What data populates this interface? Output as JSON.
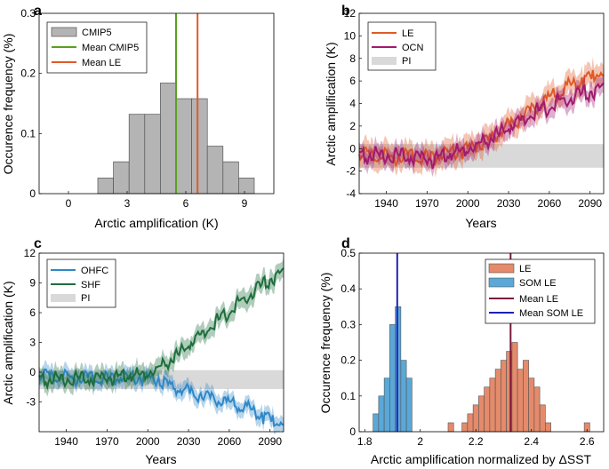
{
  "chart_data": [
    {
      "panel": "a",
      "type": "bar",
      "xlabel": "Arctic amplification (K)",
      "ylabel": "Occurence frequency (%)",
      "xlim": [
        -1.5,
        10.5
      ],
      "ylim": [
        0,
        0.3
      ],
      "xticks": [
        "0",
        "3",
        "6",
        "9"
      ],
      "yticks": [
        "0",
        "0.1",
        "0.2",
        "0.3"
      ],
      "legend": [
        "CMIP5",
        "Mean CMIP5",
        "Mean LE"
      ],
      "bins": [
        {
          "x0": 1.5,
          "x1": 2.3,
          "v": 0.026
        },
        {
          "x0": 2.3,
          "x1": 3.1,
          "v": 0.053
        },
        {
          "x0": 3.1,
          "x1": 3.9,
          "v": 0.132
        },
        {
          "x0": 3.9,
          "x1": 4.7,
          "v": 0.132
        },
        {
          "x0": 4.7,
          "x1": 5.5,
          "v": 0.184
        },
        {
          "x0": 5.5,
          "x1": 6.3,
          "v": 0.158
        },
        {
          "x0": 6.3,
          "x1": 7.1,
          "v": 0.158
        },
        {
          "x0": 7.1,
          "x1": 7.9,
          "v": 0.079
        },
        {
          "x0": 7.9,
          "x1": 8.7,
          "v": 0.053
        },
        {
          "x0": 8.7,
          "x1": 9.5,
          "v": 0.026
        }
      ],
      "vlines": [
        {
          "name": "Mean CMIP5",
          "x": 5.5,
          "color": "#5aa01e"
        },
        {
          "name": "Mean LE",
          "x": 6.6,
          "color": "#e05a26"
        }
      ],
      "colors": {
        "bars": "#b4b4b4",
        "bar_edge": "#555555"
      }
    },
    {
      "panel": "b",
      "type": "line",
      "xlabel": "Years",
      "ylabel": "Arctic amplification (K)",
      "xlim": [
        1920,
        2100
      ],
      "ylim": [
        -4,
        12
      ],
      "xticks": [
        "1940",
        "1970",
        "2000",
        "2030",
        "2060",
        "2090"
      ],
      "yticks": [
        "-4",
        "-2",
        "0",
        "2",
        "4",
        "6",
        "8",
        "10",
        "12"
      ],
      "legend": [
        "LE",
        "OCN",
        "PI"
      ],
      "pi_band": [
        -1.7,
        0.4
      ],
      "series": [
        {
          "name": "LE",
          "color": "#e05a26",
          "band": 1.0,
          "x": [
            1920,
            1940,
            1960,
            1975,
            1990,
            2000,
            2010,
            2020,
            2030,
            2040,
            2050,
            2060,
            2070,
            2080,
            2090,
            2100
          ],
          "y": [
            0,
            -0.2,
            -0.3,
            -0.4,
            0.1,
            0.5,
            1.0,
            1.7,
            2.5,
            3.3,
            4.1,
            4.9,
            5.6,
            6.3,
            6.8,
            7.3
          ]
        },
        {
          "name": "OCN",
          "color": "#a11a6e",
          "band": 0.8,
          "x": [
            1920,
            1940,
            1960,
            1975,
            1990,
            2000,
            2010,
            2020,
            2030,
            2040,
            2050,
            2060,
            2070,
            2080,
            2090,
            2100
          ],
          "y": [
            -0.1,
            -0.2,
            -0.3,
            -0.5,
            0.1,
            0.4,
            0.9,
            1.6,
            2.3,
            3.0,
            3.6,
            4.2,
            4.7,
            5.1,
            5.5,
            5.8
          ]
        }
      ]
    },
    {
      "panel": "c",
      "type": "line",
      "xlabel": "Years",
      "ylabel": "Arctic amplification (K)",
      "xlim": [
        1920,
        2100
      ],
      "ylim": [
        -6,
        12
      ],
      "xticks": [
        "1940",
        "1970",
        "2000",
        "2030",
        "2060",
        "2090"
      ],
      "yticks": [
        "-3",
        "0",
        "3",
        "6",
        "9",
        "12"
      ],
      "legend": [
        "OHFC",
        "SHF",
        "PI"
      ],
      "pi_band": [
        -1.7,
        0.2
      ],
      "series": [
        {
          "name": "OHFC",
          "color": "#2f88c8",
          "band": 0.8,
          "x": [
            1920,
            1940,
            1960,
            1980,
            2000,
            2010,
            2020,
            2030,
            2040,
            2050,
            2060,
            2070,
            2080,
            2090,
            2095,
            2100
          ],
          "y": [
            0.2,
            0.0,
            -0.2,
            -0.2,
            -0.1,
            -0.4,
            -1.0,
            -1.5,
            -1.9,
            -2.3,
            -2.7,
            -3.1,
            -3.6,
            -4.2,
            -4.7,
            -4.5
          ]
        },
        {
          "name": "SHF",
          "color": "#1e6e3c",
          "band": 0.9,
          "x": [
            1920,
            1940,
            1960,
            1980,
            2000,
            2010,
            2020,
            2030,
            2040,
            2050,
            2060,
            2070,
            2080,
            2090,
            2100
          ],
          "y": [
            -0.2,
            -0.3,
            -0.2,
            0.0,
            0.3,
            1.0,
            2.0,
            3.2,
            4.3,
            5.4,
            6.6,
            7.7,
            8.8,
            9.8,
            10.5
          ]
        }
      ]
    },
    {
      "panel": "d",
      "type": "bar",
      "xlabel": "Arctic amplification normalized by  ΔSST",
      "ylabel": "Occurence frequency (%)",
      "xlim": [
        1.78,
        2.66
      ],
      "ylim": [
        0,
        0.5
      ],
      "xticks": [
        "1.8",
        "2",
        "2.2",
        "2.4",
        "2.6"
      ],
      "yticks": [
        "0",
        "0.1",
        "0.2",
        "0.3",
        "0.4",
        "0.5"
      ],
      "legend": [
        "LE",
        "SOM LE",
        "Mean LE",
        "Mean SOM LE"
      ],
      "bin_width": 0.02,
      "series": [
        {
          "name": "SOM LE",
          "color": "#5aa8d8",
          "starts": [
            1.83,
            1.85,
            1.87,
            1.89,
            1.91,
            1.93,
            1.95
          ],
          "values": [
            0.05,
            0.1,
            0.15,
            0.3,
            0.35,
            0.2,
            0.15
          ]
        },
        {
          "name": "LE",
          "color": "#e58a6a",
          "starts": [
            2.1,
            2.15,
            2.17,
            2.19,
            2.21,
            2.23,
            2.25,
            2.27,
            2.29,
            2.31,
            2.33,
            2.35,
            2.37,
            2.39,
            2.41,
            2.43,
            2.45,
            2.59
          ],
          "values": [
            0.025,
            0.025,
            0.05,
            0.075,
            0.1,
            0.125,
            0.15,
            0.175,
            0.2,
            0.225,
            0.25,
            0.175,
            0.2,
            0.15,
            0.125,
            0.075,
            0.025,
            0.025
          ]
        }
      ],
      "vlines": [
        {
          "name": "Mean LE",
          "x": 2.325,
          "color": "#7a1a3a"
        },
        {
          "name": "Mean SOM LE",
          "x": 1.917,
          "color": "#1e22b4"
        }
      ]
    }
  ],
  "panel_labels": [
    "a",
    "b",
    "c",
    "d"
  ],
  "colors": {
    "pi_band": "#d9d9d9",
    "axis": "#000000"
  }
}
